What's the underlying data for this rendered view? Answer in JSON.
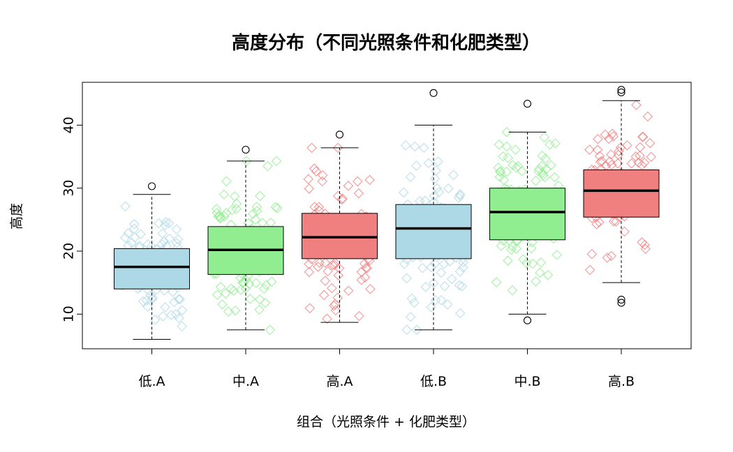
{
  "chart_data": {
    "type": "boxplot",
    "title": "高度分布（不同光照条件和化肥类型）",
    "xlabel": "组合（光照条件 + 化肥类型）",
    "ylabel": "高度",
    "categories": [
      "低.A",
      "中.A",
      "高.A",
      "低.B",
      "中.B",
      "高.B"
    ],
    "ylim": [
      4.5,
      46.8
    ],
    "yticks": [
      10,
      20,
      30,
      40
    ],
    "grid": false,
    "legend": "none",
    "box_colors": [
      "#add8e6",
      "#90ee90",
      "#f08080",
      "#add8e6",
      "#90ee90",
      "#f08080"
    ],
    "point_colors": [
      "#add8e6",
      "#90ee90",
      "#f08080",
      "#add8e6",
      "#90ee90",
      "#f08080"
    ],
    "boxes": [
      {
        "whisker_low": 6.0,
        "q1": 14.0,
        "median": 17.5,
        "q3": 20.4,
        "whisker_high": 29.0,
        "outliers": [
          30.3
        ]
      },
      {
        "whisker_low": 7.5,
        "q1": 16.3,
        "median": 20.2,
        "q3": 23.9,
        "whisker_high": 34.3,
        "outliers": [
          36.1
        ]
      },
      {
        "whisker_low": 8.7,
        "q1": 18.8,
        "median": 22.2,
        "q3": 26.0,
        "whisker_high": 36.4,
        "outliers": [
          38.5
        ]
      },
      {
        "whisker_low": 7.5,
        "q1": 18.8,
        "median": 23.6,
        "q3": 27.4,
        "whisker_high": 40.0,
        "outliers": [
          45.1
        ]
      },
      {
        "whisker_low": 10.0,
        "q1": 21.8,
        "median": 26.2,
        "q3": 30.0,
        "whisker_high": 38.9,
        "outliers": [
          9.0,
          43.4
        ]
      },
      {
        "whisker_low": 15.0,
        "q1": 25.4,
        "median": 29.6,
        "q3": 32.9,
        "whisker_high": 43.9,
        "outliers": [
          11.8,
          12.3,
          45.2,
          45.6
        ]
      }
    ],
    "points_per_group": 100
  }
}
